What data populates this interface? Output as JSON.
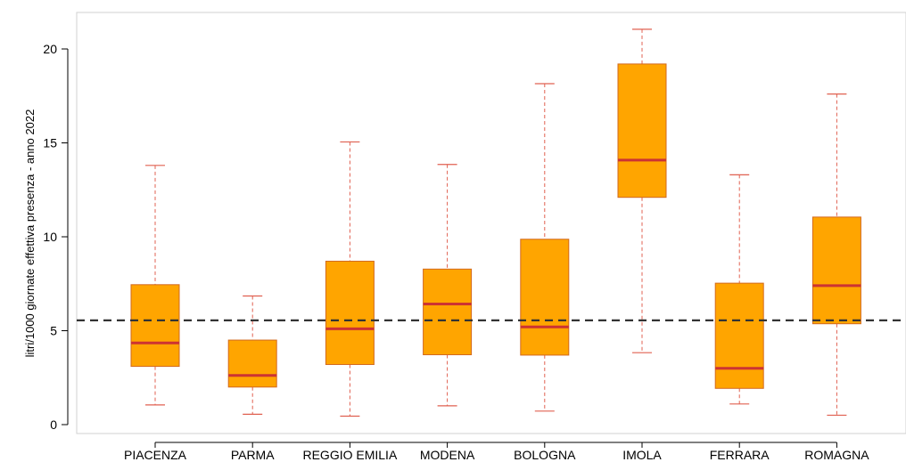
{
  "chart_data": {
    "type": "boxplot",
    "title": "",
    "xlabel": "",
    "ylabel": "litri/1000 giornate effettiva presenza - anno 2022",
    "ylim": [
      -0.4,
      21.4
    ],
    "yticks": [
      0,
      5,
      10,
      15,
      20
    ],
    "reference_line": 5.55,
    "categories": [
      "PIACENZA",
      "PARMA",
      "REGGIO EMILIA",
      "MODENA",
      "BOLOGNA",
      "IMOLA",
      "FERRARA",
      "ROMAGNA"
    ],
    "boxes": [
      {
        "min": 1.05,
        "q1": 3.1,
        "median": 4.35,
        "q3": 7.45,
        "max": 13.8
      },
      {
        "min": 0.55,
        "q1": 2.0,
        "median": 2.62,
        "q3": 4.5,
        "max": 6.85
      },
      {
        "min": 0.45,
        "q1": 3.2,
        "median": 5.1,
        "q3": 8.7,
        "max": 15.05
      },
      {
        "min": 1.0,
        "q1": 3.72,
        "median": 6.42,
        "q3": 8.28,
        "max": 13.85
      },
      {
        "min": 0.72,
        "q1": 3.7,
        "median": 5.2,
        "q3": 9.87,
        "max": 18.15
      },
      {
        "min": 3.83,
        "q1": 12.1,
        "median": 14.08,
        "q3": 19.2,
        "max": 21.05
      },
      {
        "min": 1.1,
        "q1": 1.93,
        "median": 3.0,
        "q3": 7.53,
        "max": 13.3
      },
      {
        "min": 0.5,
        "q1": 5.37,
        "median": 7.4,
        "q3": 11.05,
        "max": 17.6
      }
    ],
    "colors": {
      "box_fill": "#FFA500",
      "box_border": "#D2691E",
      "median": "#CC3333",
      "whisker": "#E06050",
      "reference_line": "#333333",
      "frame": "#D0D0D0"
    },
    "grid": false,
    "legend": "none"
  }
}
